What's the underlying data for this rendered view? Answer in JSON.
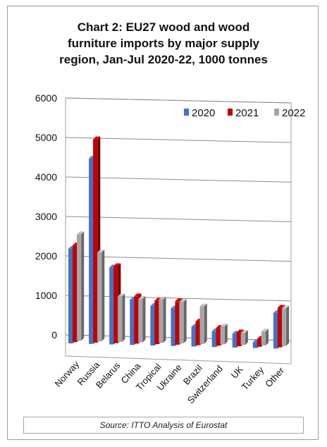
{
  "chart_data": {
    "type": "bar",
    "title_lines": [
      "Chart 2: EU27 wood and wood",
      "furniture imports by major supply",
      "region, Jan-Jul 2020-22, 1000 tonnes"
    ],
    "categories": [
      "Norway",
      "Russia",
      "Belarus",
      "China",
      "Tropical",
      "Ukraine",
      "Brazil",
      "Switzerland",
      "UK",
      "Turkey",
      "Other"
    ],
    "series": [
      {
        "name": "2020",
        "color": "#4472c4",
        "values": [
          2400,
          4700,
          1950,
          1150,
          1000,
          950,
          500,
          400,
          350,
          150,
          900
        ]
      },
      {
        "name": "2021",
        "color": "#c00000",
        "values": [
          2450,
          5150,
          1950,
          1200,
          1100,
          1100,
          600,
          450,
          350,
          200,
          1000
        ]
      },
      {
        "name": "2022",
        "color": "#a6a6a6",
        "values": [
          2700,
          2250,
          1150,
          1100,
          1100,
          1050,
          950,
          450,
          300,
          350,
          950
        ]
      }
    ],
    "yticks": [
      "0",
      "1000",
      "2000",
      "3000",
      "4000",
      "5000",
      "6000"
    ],
    "ylim": [
      0,
      6000
    ],
    "legend_position": "top-right",
    "grid": true,
    "source": "Source: ITTO Analysis of Eurostat"
  }
}
